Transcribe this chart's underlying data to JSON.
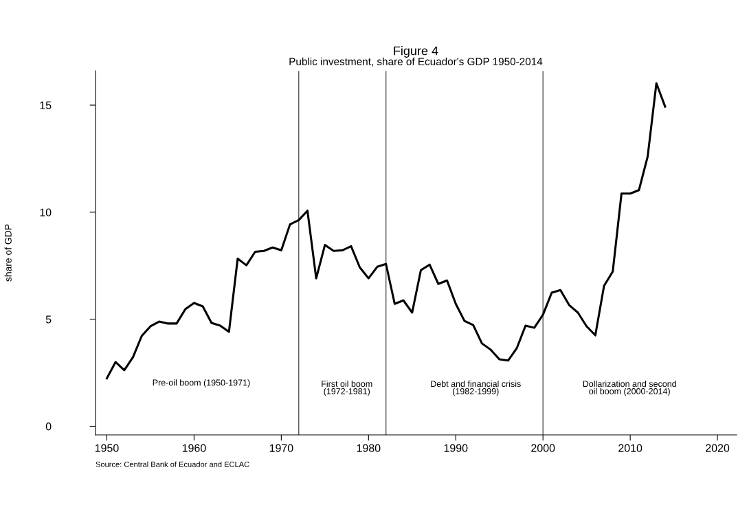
{
  "chart_data": {
    "type": "line",
    "title": "Figure 4",
    "subtitle": "Public investment, share of Ecuador's GDP 1950-2014",
    "ylabel": "share of GDP",
    "x": [
      1950,
      1951,
      1952,
      1953,
      1954,
      1955,
      1956,
      1957,
      1958,
      1959,
      1960,
      1961,
      1962,
      1963,
      1964,
      1965,
      1966,
      1967,
      1968,
      1969,
      1970,
      1971,
      1972,
      1973,
      1974,
      1975,
      1976,
      1977,
      1978,
      1979,
      1980,
      1981,
      1982,
      1983,
      1984,
      1985,
      1986,
      1987,
      1988,
      1989,
      1990,
      1991,
      1992,
      1993,
      1994,
      1995,
      1996,
      1997,
      1998,
      1999,
      2000,
      2001,
      2002,
      2003,
      2004,
      2005,
      2006,
      2007,
      2008,
      2009,
      2010,
      2011,
      2012,
      2013,
      2014
    ],
    "series": [
      {
        "color": "#000000",
        "values": [
          2.24,
          3.0,
          2.62,
          3.23,
          4.22,
          4.67,
          4.89,
          4.8,
          4.8,
          5.47,
          5.76,
          5.6,
          4.83,
          4.7,
          4.41,
          7.83,
          7.52,
          8.15,
          8.19,
          8.35,
          8.22,
          9.43,
          9.63,
          10.07,
          6.91,
          8.47,
          8.19,
          8.22,
          8.41,
          7.42,
          6.91,
          7.45,
          7.58,
          5.72,
          5.88,
          5.31,
          7.29,
          7.55,
          6.65,
          6.81,
          5.72,
          4.92,
          4.73,
          3.87,
          3.58,
          3.13,
          3.07,
          3.65,
          4.7,
          4.6,
          5.21,
          6.24,
          6.36,
          5.66,
          5.31,
          4.67,
          4.25,
          6.56,
          7.23,
          10.87,
          10.87,
          11.03,
          12.6,
          16.02,
          14.93
        ]
      }
    ],
    "xlim": [
      1948.7,
      2022.2
    ],
    "xticks": [
      1950,
      1960,
      1970,
      1980,
      1990,
      2000,
      2010,
      2020
    ],
    "ylim": [
      -0.4,
      16.6
    ],
    "yticks": [
      0,
      5,
      10,
      15
    ],
    "ref_lines": [
      {
        "axis": "x",
        "value": 1972,
        "color": "#555555"
      },
      {
        "axis": "x",
        "value": 1982,
        "color": "#555555"
      },
      {
        "axis": "x",
        "value": 2000,
        "color": "#555555"
      }
    ],
    "annotations": [
      "Pre-oil boom (1950-1971)",
      "First oil boom\n(1972-1981)",
      "Debt and financial crisis\n(1982-1999)",
      "Dollarization and second\noil boom (2000-2014)",
      "Source: Central Bank of Ecuador and ECLAC"
    ],
    "grid": false,
    "legend": false,
    "marker": "none",
    "line_style": "solid"
  }
}
